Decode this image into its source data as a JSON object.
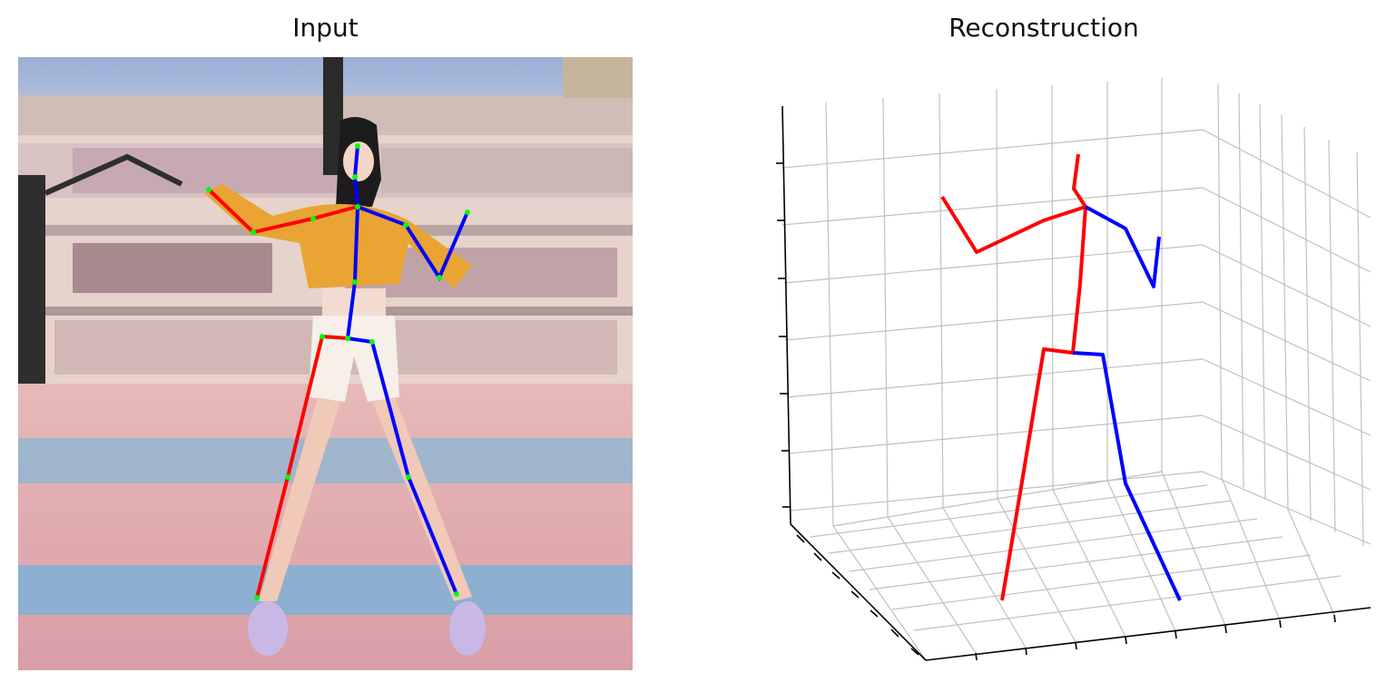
{
  "figure": {
    "input_title": "Input",
    "reconstruction_title": "Reconstruction"
  },
  "colors": {
    "left_side": "#ff0000",
    "right_side": "#0000ff",
    "keypoint": "#00ff00",
    "grid": "#c0c0c0",
    "axis": "#000000"
  },
  "input_image": {
    "description_icon": "dancer-photo",
    "keypoint_count": 17
  },
  "reconstruction": {
    "grid": true,
    "axes_tick_labels": false
  }
}
